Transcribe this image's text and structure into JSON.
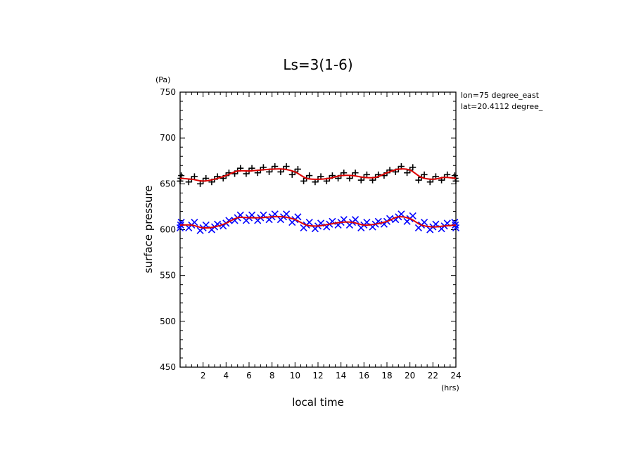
{
  "chart_data": {
    "type": "scatter",
    "title": "Ls=3(1-6)",
    "xlabel": "local time",
    "ylabel": "surface pressure",
    "x_unit": "(hrs)",
    "y_unit": "(Pa)",
    "annotations": [
      "lon=75 degree_east",
      "lat=20.4112 degree_"
    ],
    "xlim": [
      0,
      24
    ],
    "ylim": [
      450,
      750
    ],
    "x_ticks": [
      2,
      4,
      6,
      8,
      10,
      12,
      14,
      16,
      18,
      20,
      22,
      24
    ],
    "x_tick_labels": [
      "2",
      "4",
      "6",
      "8",
      "10",
      "12",
      "14",
      "16",
      "18",
      "20",
      "22",
      "24"
    ],
    "y_ticks": [
      450,
      500,
      550,
      600,
      650,
      700,
      750
    ],
    "y_tick_labels": [
      "450",
      "500",
      "550",
      "600",
      "650",
      "700",
      "750"
    ],
    "hours": [
      0,
      1,
      2,
      3,
      4,
      5,
      6,
      7,
      8,
      9,
      10,
      11,
      12,
      13,
      14,
      15,
      16,
      17,
      18,
      19,
      20,
      21,
      22,
      23,
      24
    ],
    "series": [
      {
        "marker": "+",
        "color": "#000000",
        "values": [
          656,
          655,
          653,
          655,
          659,
          664,
          664,
          665,
          666,
          666,
          663,
          656,
          655,
          656,
          659,
          659,
          657,
          657,
          662,
          666,
          665,
          657,
          655,
          657,
          656
        ],
        "spread": [
          5,
          5,
          5,
          5,
          5,
          5,
          5,
          5,
          5,
          5,
          5,
          5,
          5,
          5,
          5,
          5,
          5,
          5,
          5,
          5,
          5,
          5,
          5,
          5,
          5
        ]
      },
      {
        "marker": "x",
        "color": "#0000ff",
        "values": [
          605,
          605,
          602,
          603,
          607,
          613,
          613,
          613,
          614,
          614,
          611,
          605,
          604,
          606,
          608,
          608,
          605,
          606,
          609,
          614,
          612,
          605,
          603,
          604,
          605
        ],
        "spread": [
          5,
          5,
          5,
          5,
          5,
          5,
          5,
          5,
          5,
          5,
          5,
          5,
          5,
          5,
          5,
          5,
          5,
          5,
          5,
          5,
          5,
          5,
          5,
          5,
          5
        ]
      }
    ],
    "fit_line_color": "#dd0000"
  }
}
